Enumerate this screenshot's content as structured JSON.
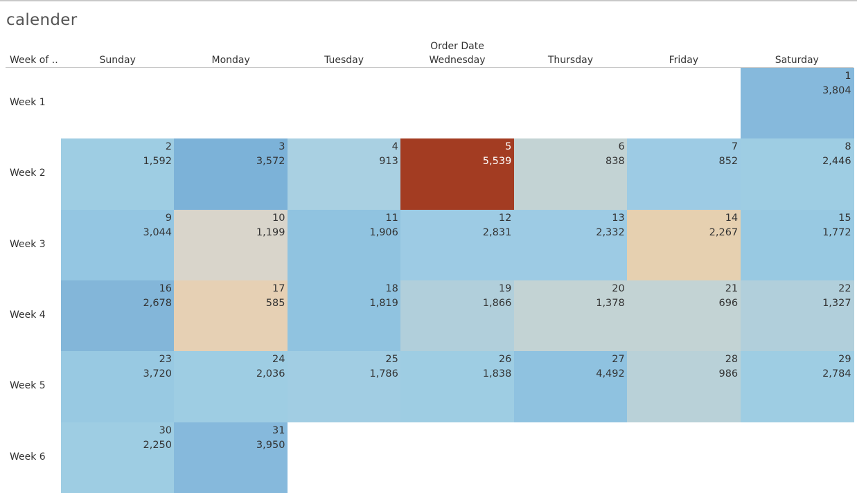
{
  "title": "calender",
  "column_group_label": "Order Date",
  "row_axis_label": "Week of ..",
  "days": [
    "Sunday",
    "Monday",
    "Tuesday",
    "Wednesday",
    "Thursday",
    "Friday",
    "Saturday"
  ],
  "weeks": [
    "Week 1",
    "Week 2",
    "Week 3",
    "Week 4",
    "Week 5",
    "Week 6"
  ],
  "colors": {
    "text_dark": "#333333",
    "text_light": "#ffffff",
    "title": "#555555"
  },
  "chart_data": {
    "type": "heatmap",
    "title": "calender",
    "x_label": "Order Date",
    "y_label": "Week of ..",
    "cells": [
      {
        "day": "1",
        "value": "3,804",
        "week": 1,
        "weekday": 6,
        "color": "#86b9dc"
      },
      {
        "day": "2",
        "value": "1,592",
        "week": 2,
        "weekday": 0,
        "color": "#9ecde3"
      },
      {
        "day": "3",
        "value": "3,572",
        "week": 2,
        "weekday": 1,
        "color": "#7cb2d8"
      },
      {
        "day": "4",
        "value": "913",
        "week": 2,
        "weekday": 2,
        "color": "#a9d0e2"
      },
      {
        "day": "5",
        "value": "5,539",
        "week": 2,
        "weekday": 3,
        "color": "#a33c22",
        "text": "light"
      },
      {
        "day": "6",
        "value": "838",
        "week": 2,
        "weekday": 4,
        "color": "#c3d3d4"
      },
      {
        "day": "7",
        "value": "852",
        "week": 2,
        "weekday": 5,
        "color": "#9dcbe4"
      },
      {
        "day": "8",
        "value": "2,446",
        "week": 2,
        "weekday": 6,
        "color": "#9ecde3"
      },
      {
        "day": "9",
        "value": "3,044",
        "week": 3,
        "weekday": 0,
        "color": "#94c6e2"
      },
      {
        "day": "10",
        "value": "1,199",
        "week": 3,
        "weekday": 1,
        "color": "#d9d5cb"
      },
      {
        "day": "11",
        "value": "1,906",
        "week": 3,
        "weekday": 2,
        "color": "#90c3e0"
      },
      {
        "day": "12",
        "value": "2,831",
        "week": 3,
        "weekday": 3,
        "color": "#9dcbe4"
      },
      {
        "day": "13",
        "value": "2,332",
        "week": 3,
        "weekday": 4,
        "color": "#9dcbe4"
      },
      {
        "day": "14",
        "value": "2,267",
        "week": 3,
        "weekday": 5,
        "color": "#e6d0b0"
      },
      {
        "day": "15",
        "value": "1,772",
        "week": 3,
        "weekday": 6,
        "color": "#98c9e2"
      },
      {
        "day": "16",
        "value": "2,678",
        "week": 4,
        "weekday": 0,
        "color": "#83b6d9"
      },
      {
        "day": "17",
        "value": "585",
        "week": 4,
        "weekday": 1,
        "color": "#e6d0b4"
      },
      {
        "day": "18",
        "value": "1,819",
        "week": 4,
        "weekday": 2,
        "color": "#90c3e0"
      },
      {
        "day": "19",
        "value": "1,866",
        "week": 4,
        "weekday": 3,
        "color": "#b1cfdb"
      },
      {
        "day": "20",
        "value": "1,378",
        "week": 4,
        "weekday": 4,
        "color": "#c3d3d4"
      },
      {
        "day": "21",
        "value": "696",
        "week": 4,
        "weekday": 5,
        "color": "#c3d3d4"
      },
      {
        "day": "22",
        "value": "1,327",
        "week": 4,
        "weekday": 6,
        "color": "#b1cfdb"
      },
      {
        "day": "23",
        "value": "3,720",
        "week": 5,
        "weekday": 0,
        "color": "#98c9e2"
      },
      {
        "day": "24",
        "value": "2,036",
        "week": 5,
        "weekday": 1,
        "color": "#9ecde3"
      },
      {
        "day": "25",
        "value": "1,786",
        "week": 5,
        "weekday": 2,
        "color": "#a1cde3"
      },
      {
        "day": "26",
        "value": "1,838",
        "week": 5,
        "weekday": 3,
        "color": "#9ecde3"
      },
      {
        "day": "27",
        "value": "4,492",
        "week": 5,
        "weekday": 4,
        "color": "#8fc2e0"
      },
      {
        "day": "28",
        "value": "986",
        "week": 5,
        "weekday": 5,
        "color": "#b9d1d8"
      },
      {
        "day": "29",
        "value": "2,784",
        "week": 5,
        "weekday": 6,
        "color": "#9ecde3"
      },
      {
        "day": "30",
        "value": "2,250",
        "week": 6,
        "weekday": 0,
        "color": "#9ecde3"
      },
      {
        "day": "31",
        "value": "3,950",
        "week": 6,
        "weekday": 1,
        "color": "#86b9dc"
      }
    ]
  }
}
